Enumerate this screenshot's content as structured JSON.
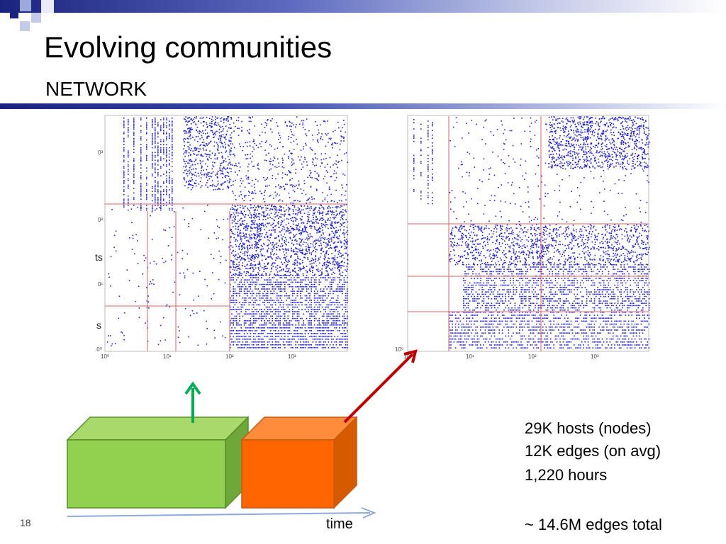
{
  "slide": {
    "title": "Evolving communities",
    "subtitle": "NETWORK",
    "page_number": "18"
  },
  "axis": {
    "time_label": "time"
  },
  "stats": {
    "hosts": "29K hosts (nodes)",
    "edges": "12K edges (on avg)",
    "hours": "1,220 hours",
    "total": "~ 14.6M edges total"
  },
  "left_plot": {
    "y_ticks": [
      "0³",
      "0²",
      "0¹",
      ".0⁰"
    ],
    "x_ticks": [
      "10⁰",
      "10¹",
      "10²",
      "10³"
    ],
    "edge_labels": [
      "ts",
      "s"
    ]
  },
  "right_plot": {
    "y_ticks": [
      "10⁰"
    ],
    "x_ticks": [
      "10⁰",
      "10¹",
      "10²",
      "10³"
    ]
  },
  "colors": {
    "points": "#1f1fe6",
    "grid_lines": "#e06060",
    "green_box": "#92d050",
    "orange_box": "#ff6600",
    "up_arrow": "#00b050",
    "diag_arrow": "#c00000",
    "time_axis": "#8ea9db"
  }
}
